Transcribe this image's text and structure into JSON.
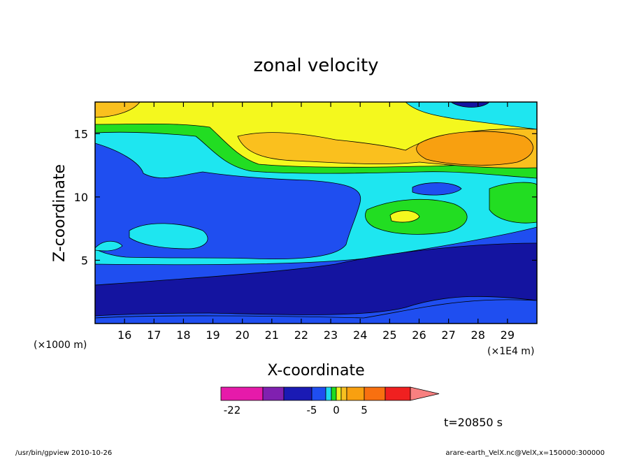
{
  "chart_data": {
    "type": "heatmap",
    "title": "zonal velocity",
    "xlabel": "X-coordinate",
    "ylabel": "Z-coordinate",
    "x_ticks": [
      "16",
      "17",
      "18",
      "19",
      "20",
      "21",
      "22",
      "23",
      "24",
      "25",
      "26",
      "27",
      "28",
      "29"
    ],
    "x_tick_values": [
      16,
      17,
      18,
      19,
      20,
      21,
      22,
      23,
      24,
      25,
      26,
      27,
      28,
      29
    ],
    "xlim": [
      15.0,
      30.0
    ],
    "y_ticks": [
      "5",
      "10",
      "15"
    ],
    "y_tick_values": [
      5,
      10,
      15
    ],
    "ylim": [
      0.0,
      17.5
    ],
    "x_unit_left": "(×1000 m)",
    "x_unit_right": "(×1E4 m)",
    "time_label": "t=20850 s",
    "colorbar": {
      "tick_labels": [
        "-22",
        "-5",
        "0",
        "5"
      ],
      "colors": [
        "#e61aaa",
        "#8020b0",
        "#1a1ab4",
        "#1f4ef0",
        "#1ed8f0",
        "#20dd20",
        "#f0f020",
        "#f8c020",
        "#f8a010",
        "#f87010",
        "#f02020",
        "#f88080"
      ]
    },
    "contour_levels": [
      {
        "level": "deep-blue",
        "color": "#1414a0"
      },
      {
        "level": "blue",
        "color": "#1f4ef0"
      },
      {
        "level": "cyan",
        "color": "#1ee6f0"
      },
      {
        "level": "green",
        "color": "#22dd22"
      },
      {
        "level": "yellow",
        "color": "#f4f81e"
      },
      {
        "level": "light-orange",
        "color": "#fac01e"
      },
      {
        "level": "orange",
        "color": "#f8a010"
      }
    ]
  },
  "footer": {
    "left": "/usr/bin/gpview   2010-10-26",
    "right": "arare-earth_VelX.nc@VelX,x=150000:300000"
  }
}
